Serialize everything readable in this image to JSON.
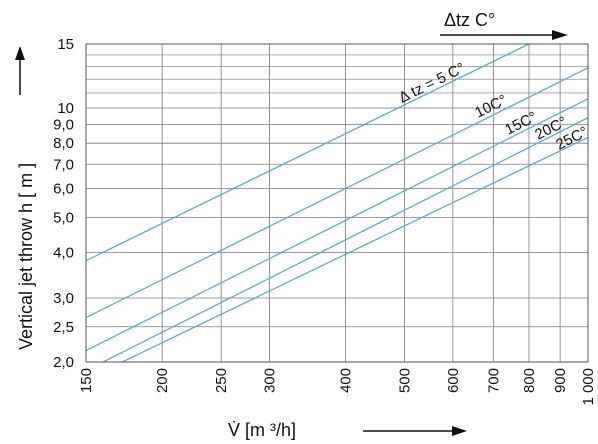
{
  "chart_data": {
    "type": "line",
    "x_scale": "log",
    "y_scale": "log",
    "xlim": [
      150,
      1000
    ],
    "ylim": [
      2.0,
      15
    ],
    "x_ticks": [
      150,
      200,
      250,
      300,
      400,
      500,
      600,
      700,
      800,
      900,
      1000
    ],
    "x_tick_labels": [
      "150",
      "200",
      "250",
      "300",
      "400",
      "500",
      "600",
      "700",
      "800",
      "900",
      "1 000"
    ],
    "y_ticks": [
      2.0,
      2.5,
      3.0,
      4.0,
      5.0,
      6.0,
      7.0,
      8.0,
      9.0,
      10,
      15
    ],
    "y_tick_labels": [
      "2,0",
      "2,5",
      "3,0",
      "4,0",
      "5,0",
      "6,0",
      "7,0",
      "8,0",
      "9,0",
      "10",
      "15"
    ],
    "y_minor_ticks": [
      11,
      12,
      13,
      14
    ],
    "grid": true,
    "xlabel": "V̇   [m ³/h]",
    "ylabel": "Vertical jet throw   h  [ m ]",
    "top_label": "Δtz  C°",
    "series": [
      {
        "name": "Δ tz = 5 C°",
        "x": [
          150,
          800
        ],
        "y": [
          3.8,
          15
        ]
      },
      {
        "name": "10C°",
        "x": [
          150,
          1000
        ],
        "y": [
          2.65,
          12.9
        ]
      },
      {
        "name": "15C°",
        "x": [
          150,
          1000
        ],
        "y": [
          2.15,
          10.6
        ]
      },
      {
        "name": "20C°",
        "x": [
          160,
          1000
        ],
        "y": [
          2.0,
          9.4
        ]
      },
      {
        "name": "25C°",
        "x": [
          172,
          1000
        ],
        "y": [
          2.0,
          8.3
        ]
      }
    ]
  },
  "colors": {
    "series_line": "#5aa7d9",
    "grid": "#7a7a7a",
    "text": "#111111"
  }
}
